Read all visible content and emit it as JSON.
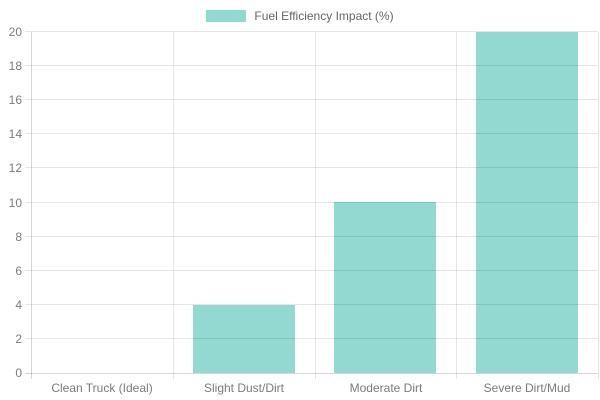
{
  "chart_data": {
    "type": "bar",
    "title": "",
    "legend": {
      "label": "Fuel Efficiency Impact (%)",
      "position": "top"
    },
    "categories": [
      "Clean Truck (Ideal)",
      "Slight Dust/Dirt",
      "Moderate Dirt",
      "Severe Dirt/Mud"
    ],
    "values": [
      0,
      4,
      10,
      20
    ],
    "xlabel": "",
    "ylabel": "",
    "ylim": [
      0,
      20
    ],
    "ytick_step": 2,
    "yticks": [
      0,
      2,
      4,
      6,
      8,
      10,
      12,
      14,
      16,
      18,
      20
    ],
    "grid": true,
    "bar_width_fraction": 0.72,
    "colors": {
      "bar": "#94d8d2",
      "grid": "rgba(0,0,0,0.10)",
      "axis": "rgba(0,0,0,0.16)",
      "tick_label": "#7b7b7b",
      "legend_label": "#666666",
      "background": "#ffffff"
    }
  }
}
